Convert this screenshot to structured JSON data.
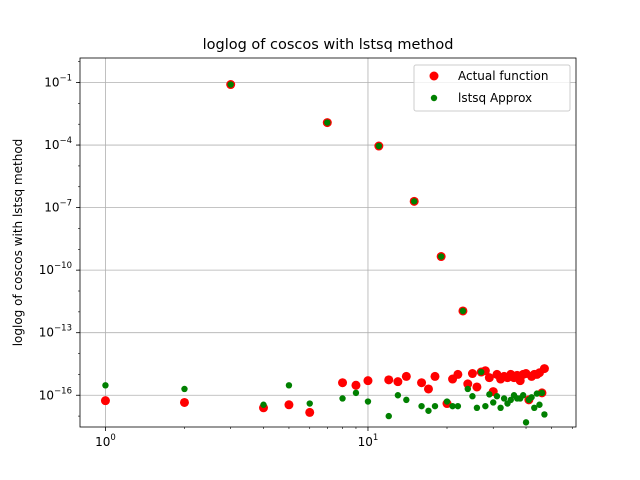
{
  "chart_data": {
    "type": "scatter",
    "title": "loglog of coscos with lstsq method",
    "xlabel": "",
    "ylabel": "loglog of coscos with lstsq method",
    "xscale": "log",
    "yscale": "log",
    "xlim": [
      0.8,
      62
    ],
    "ylim": [
      3e-18,
      1.5
    ],
    "grid": true,
    "legend_location": "top-right",
    "x_ticks": [
      {
        "value": 1,
        "base": "10",
        "exp": "0"
      },
      {
        "value": 10,
        "base": "10",
        "exp": "1"
      }
    ],
    "y_ticks": [
      {
        "value": 1e-16,
        "base": "10",
        "exp": "−16"
      },
      {
        "value": 1e-13,
        "base": "10",
        "exp": "−13"
      },
      {
        "value": 1e-10,
        "base": "10",
        "exp": "−10"
      },
      {
        "value": 1e-07,
        "base": "10",
        "exp": "−7"
      },
      {
        "value": 0.0001,
        "base": "10",
        "exp": "−4"
      },
      {
        "value": 0.1,
        "base": "10",
        "exp": "−1"
      }
    ],
    "series": [
      {
        "name": "Actual function",
        "color": "#ff0000",
        "marker_radius": 4.5,
        "points": [
          [
            1,
            5.5e-17
          ],
          [
            2,
            4.5e-17
          ],
          [
            3,
            0.08
          ],
          [
            4,
            2.5e-17
          ],
          [
            5,
            3.5e-17
          ],
          [
            6,
            1.5e-17
          ],
          [
            7,
            0.0012
          ],
          [
            8,
            4e-16
          ],
          [
            9,
            3e-16
          ],
          [
            10,
            5e-16
          ],
          [
            11,
            9e-05
          ],
          [
            12,
            5.5e-16
          ],
          [
            13,
            4.5e-16
          ],
          [
            14,
            8e-16
          ],
          [
            15,
            2e-07
          ],
          [
            16,
            4e-16
          ],
          [
            17,
            2e-16
          ],
          [
            18,
            8e-16
          ],
          [
            19,
            4.5e-10
          ],
          [
            20,
            4e-17
          ],
          [
            21,
            6e-16
          ],
          [
            22,
            1e-15
          ],
          [
            23,
            1.1e-12
          ],
          [
            24,
            3.5e-16
          ],
          [
            25,
            1.1e-15
          ],
          [
            26,
            2.5e-16
          ],
          [
            27,
            1.3e-15
          ],
          [
            28,
            1.5e-15
          ],
          [
            29,
            7e-16
          ],
          [
            30,
            1.5e-16
          ],
          [
            31,
            1e-15
          ],
          [
            32,
            6e-16
          ],
          [
            33,
            8e-16
          ],
          [
            34,
            7e-16
          ],
          [
            35,
            1e-15
          ],
          [
            36,
            7e-16
          ],
          [
            37,
            9e-16
          ],
          [
            38,
            5e-16
          ],
          [
            39,
            1e-15
          ],
          [
            40,
            1.1e-15
          ],
          [
            41,
            6e-17
          ],
          [
            42,
            8e-16
          ],
          [
            43,
            1e-15
          ],
          [
            44,
            1e-15
          ],
          [
            45,
            1.2e-15
          ],
          [
            46,
            1.3e-16
          ],
          [
            47,
            1.9e-15
          ]
        ]
      },
      {
        "name": "lstsq Approx",
        "color": "#008000",
        "marker_radius": 3.2,
        "points": [
          [
            1,
            3e-16
          ],
          [
            2,
            2e-16
          ],
          [
            3,
            0.08
          ],
          [
            4,
            3.5e-17
          ],
          [
            5,
            3e-16
          ],
          [
            6,
            4e-17
          ],
          [
            7,
            0.0012
          ],
          [
            8,
            7e-17
          ],
          [
            9,
            1.3e-16
          ],
          [
            10,
            5e-17
          ],
          [
            11,
            9e-05
          ],
          [
            12,
            1e-17
          ],
          [
            13,
            1e-16
          ],
          [
            14,
            6e-17
          ],
          [
            15,
            2e-07
          ],
          [
            16,
            3e-17
          ],
          [
            17,
            1.8e-17
          ],
          [
            18,
            3e-17
          ],
          [
            19,
            4.5e-10
          ],
          [
            20,
            5e-17
          ],
          [
            21,
            3e-17
          ],
          [
            22,
            3e-17
          ],
          [
            23,
            1.1e-12
          ],
          [
            24,
            2e-16
          ],
          [
            25,
            9e-17
          ],
          [
            26,
            2.5e-17
          ],
          [
            27,
            1.3e-15
          ],
          [
            28,
            3e-17
          ],
          [
            29,
            1.1e-16
          ],
          [
            30,
            4.5e-17
          ],
          [
            31,
            9e-17
          ],
          [
            32,
            2.5e-17
          ],
          [
            33,
            7e-17
          ],
          [
            34,
            4e-17
          ],
          [
            35,
            6e-17
          ],
          [
            36,
            1e-16
          ],
          [
            37,
            7e-17
          ],
          [
            38,
            7e-17
          ],
          [
            39,
            1e-16
          ],
          [
            40,
            5e-18
          ],
          [
            41,
            6e-17
          ],
          [
            42,
            8e-17
          ],
          [
            43,
            2.5e-17
          ],
          [
            44,
            1.2e-16
          ],
          [
            45,
            3.5e-17
          ],
          [
            46,
            1.3e-16
          ],
          [
            47,
            1.2e-17
          ]
        ]
      }
    ]
  }
}
